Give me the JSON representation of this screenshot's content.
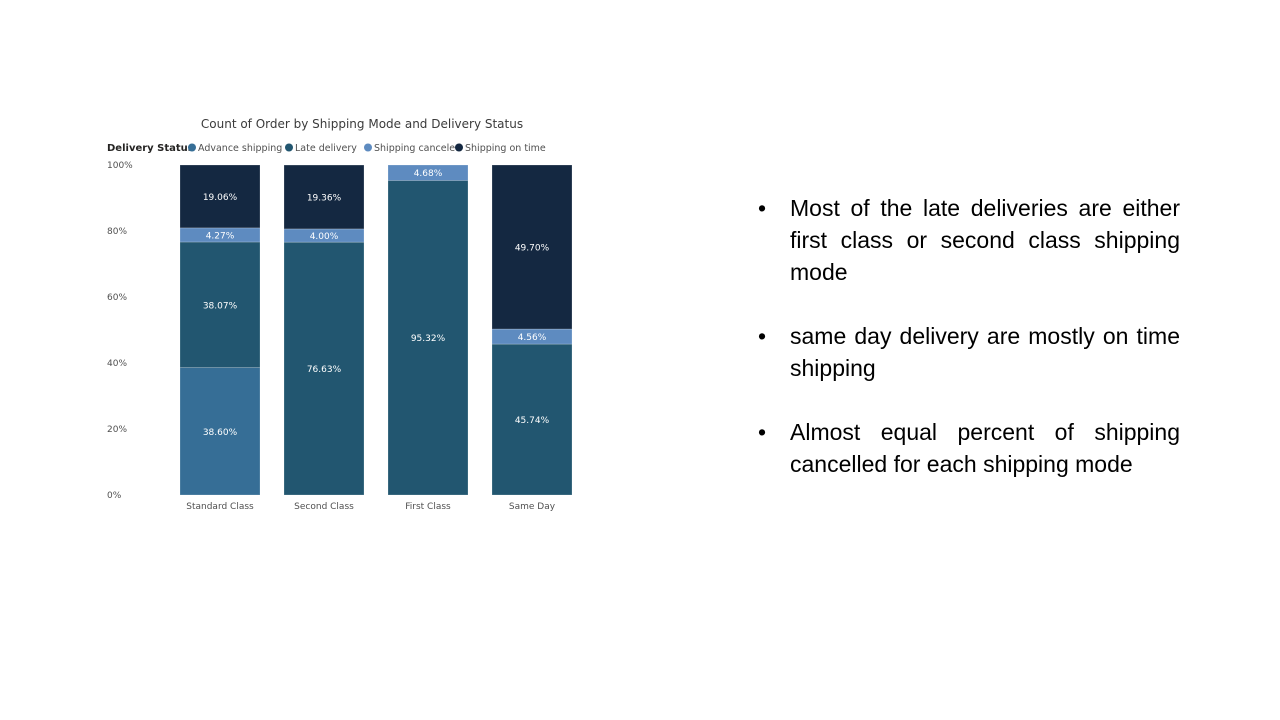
{
  "chart_data": {
    "type": "bar",
    "stacked": true,
    "percent": true,
    "title": "Count of Order by Shipping Mode and Delivery Status",
    "legend_title": "Delivery Status",
    "legend_position": "top-left",
    "categories": [
      "Standard Class",
      "Second Class",
      "First Class",
      "Same Day"
    ],
    "y_ticks": [
      "0%",
      "20%",
      "40%",
      "60%",
      "80%",
      "100%"
    ],
    "ylim": [
      0,
      100
    ],
    "series": [
      {
        "name": "Advance shipping",
        "color": "#366E96",
        "values": [
          38.6,
          0,
          0,
          0
        ],
        "labels": [
          "38.60%",
          "",
          "",
          ""
        ]
      },
      {
        "name": "Late delivery",
        "color": "#225670",
        "values": [
          38.07,
          76.63,
          95.32,
          45.74
        ],
        "labels": [
          "38.07%",
          "76.63%",
          "95.32%",
          "45.74%"
        ]
      },
      {
        "name": "Shipping canceled",
        "color": "#5E8BC0",
        "values": [
          4.27,
          4.0,
          4.68,
          4.56
        ],
        "labels": [
          "4.27%",
          "4.00%",
          "4.68%",
          "4.56%"
        ]
      },
      {
        "name": "Shipping on time",
        "color": "#142841",
        "values": [
          19.06,
          19.36,
          0,
          49.7
        ],
        "labels": [
          "19.06%",
          "19.36%",
          "",
          "49.70%"
        ]
      }
    ]
  },
  "notes": [
    "Most of the late deliveries are either first class or second class shipping mode",
    "same day delivery are mostly on time shipping",
    "Almost equal percent of shipping cancelled for each shipping mode"
  ],
  "bullet_char": "•"
}
